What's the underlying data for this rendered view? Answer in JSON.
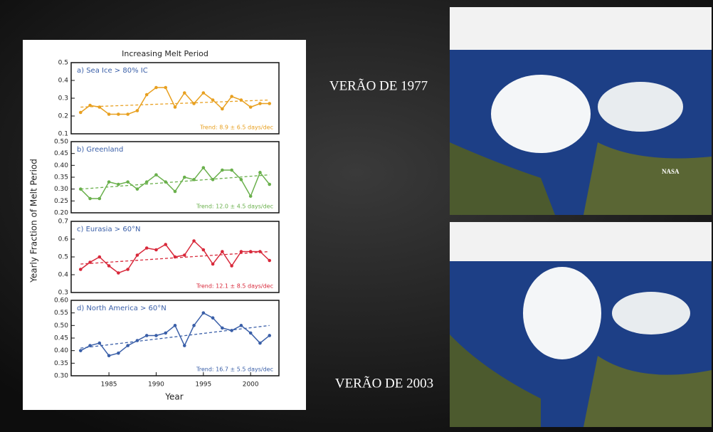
{
  "figure": {
    "title": "Increasing Melt Period",
    "y_label": "Yearly Fraction of Melt Period",
    "x_label": "Year"
  },
  "captions": [
    "VERÃO DE 1977",
    "VERÃO DE 2003"
  ],
  "image_credit": "NASA",
  "chart_data": [
    {
      "type": "line",
      "title": "a) Sea Ice > 80% IC",
      "annotation": "Trend: 8.9 ± 6.5 days/dec",
      "color": "#e8a020",
      "x": [
        1982,
        1983,
        1984,
        1985,
        1986,
        1987,
        1988,
        1989,
        1990,
        1991,
        1992,
        1993,
        1994,
        1995,
        1996,
        1997,
        1998,
        1999,
        2000,
        2001,
        2002
      ],
      "values": [
        0.22,
        0.26,
        0.25,
        0.21,
        0.21,
        0.21,
        0.23,
        0.32,
        0.36,
        0.36,
        0.25,
        0.33,
        0.27,
        0.33,
        0.29,
        0.24,
        0.31,
        0.29,
        0.25,
        0.27,
        0.27
      ],
      "trend": [
        0.25,
        0.29
      ],
      "xlim": [
        1981,
        2003
      ],
      "ylim": [
        0.1,
        0.5
      ],
      "yticks": [
        0.1,
        0.2,
        0.3,
        0.4,
        0.5
      ]
    },
    {
      "type": "line",
      "title": "b) Greenland",
      "annotation": "Trend: 12.0 ± 4.5 days/dec",
      "color": "#6ab04c",
      "x": [
        1982,
        1983,
        1984,
        1985,
        1986,
        1987,
        1988,
        1989,
        1990,
        1991,
        1992,
        1993,
        1994,
        1995,
        1996,
        1997,
        1998,
        1999,
        2000,
        2001,
        2002
      ],
      "values": [
        0.3,
        0.26,
        0.26,
        0.33,
        0.32,
        0.33,
        0.3,
        0.33,
        0.36,
        0.33,
        0.29,
        0.35,
        0.34,
        0.39,
        0.34,
        0.38,
        0.38,
        0.34,
        0.27,
        0.37,
        0.32
      ],
      "trend": [
        0.3,
        0.36
      ],
      "xlim": [
        1981,
        2003
      ],
      "ylim": [
        0.2,
        0.5
      ],
      "yticks": [
        {
          "value": 0.2,
          "label": "0.20"
        },
        0.25,
        {
          "value": 0.3,
          "label": "0.30"
        },
        0.35,
        {
          "value": 0.4,
          "label": "0.40"
        },
        0.45,
        {
          "value": 0.5,
          "label": "0.50"
        }
      ]
    },
    {
      "type": "line",
      "title": "c) Eurasia > 60°N",
      "annotation": "Trend: 12.1 ± 8.5 days/dec",
      "color": "#d8283a",
      "x": [
        1982,
        1983,
        1984,
        1985,
        1986,
        1987,
        1988,
        1989,
        1990,
        1991,
        1992,
        1993,
        1994,
        1995,
        1996,
        1997,
        1998,
        1999,
        2000,
        2001,
        2002
      ],
      "values": [
        0.43,
        0.47,
        0.5,
        0.45,
        0.41,
        0.43,
        0.51,
        0.55,
        0.54,
        0.57,
        0.5,
        0.51,
        0.59,
        0.54,
        0.46,
        0.53,
        0.45,
        0.53,
        0.53,
        0.53,
        0.48
      ],
      "trend": [
        0.46,
        0.53
      ],
      "xlim": [
        1981,
        2003
      ],
      "ylim": [
        0.3,
        0.7
      ],
      "yticks": [
        0.3,
        0.4,
        0.5,
        0.6,
        0.7
      ]
    },
    {
      "type": "line",
      "title": "d) North America > 60°N",
      "annotation": "Trend: 16.7 ± 5.5 days/dec",
      "color": "#3a5fa8",
      "x": [
        1982,
        1983,
        1984,
        1985,
        1986,
        1987,
        1988,
        1989,
        1990,
        1991,
        1992,
        1993,
        1994,
        1995,
        1996,
        1997,
        1998,
        1999,
        2000,
        2001,
        2002
      ],
      "values": [
        0.4,
        0.42,
        0.43,
        0.38,
        0.39,
        0.42,
        0.44,
        0.46,
        0.46,
        0.47,
        0.5,
        0.42,
        0.5,
        0.55,
        0.53,
        0.49,
        0.48,
        0.5,
        0.47,
        0.43,
        0.46
      ],
      "trend": [
        0.41,
        0.5
      ],
      "xlim": [
        1981,
        2003
      ],
      "ylim": [
        0.3,
        0.6
      ],
      "yticks": [
        {
          "value": 0.3,
          "label": "0.30"
        },
        0.35,
        {
          "value": 0.4,
          "label": "0.40"
        },
        0.45,
        {
          "value": 0.5,
          "label": "0.50"
        },
        0.55,
        {
          "value": 0.6,
          "label": "0.60"
        }
      ],
      "xticks": [
        1985,
        1990,
        1995,
        2000
      ]
    }
  ]
}
